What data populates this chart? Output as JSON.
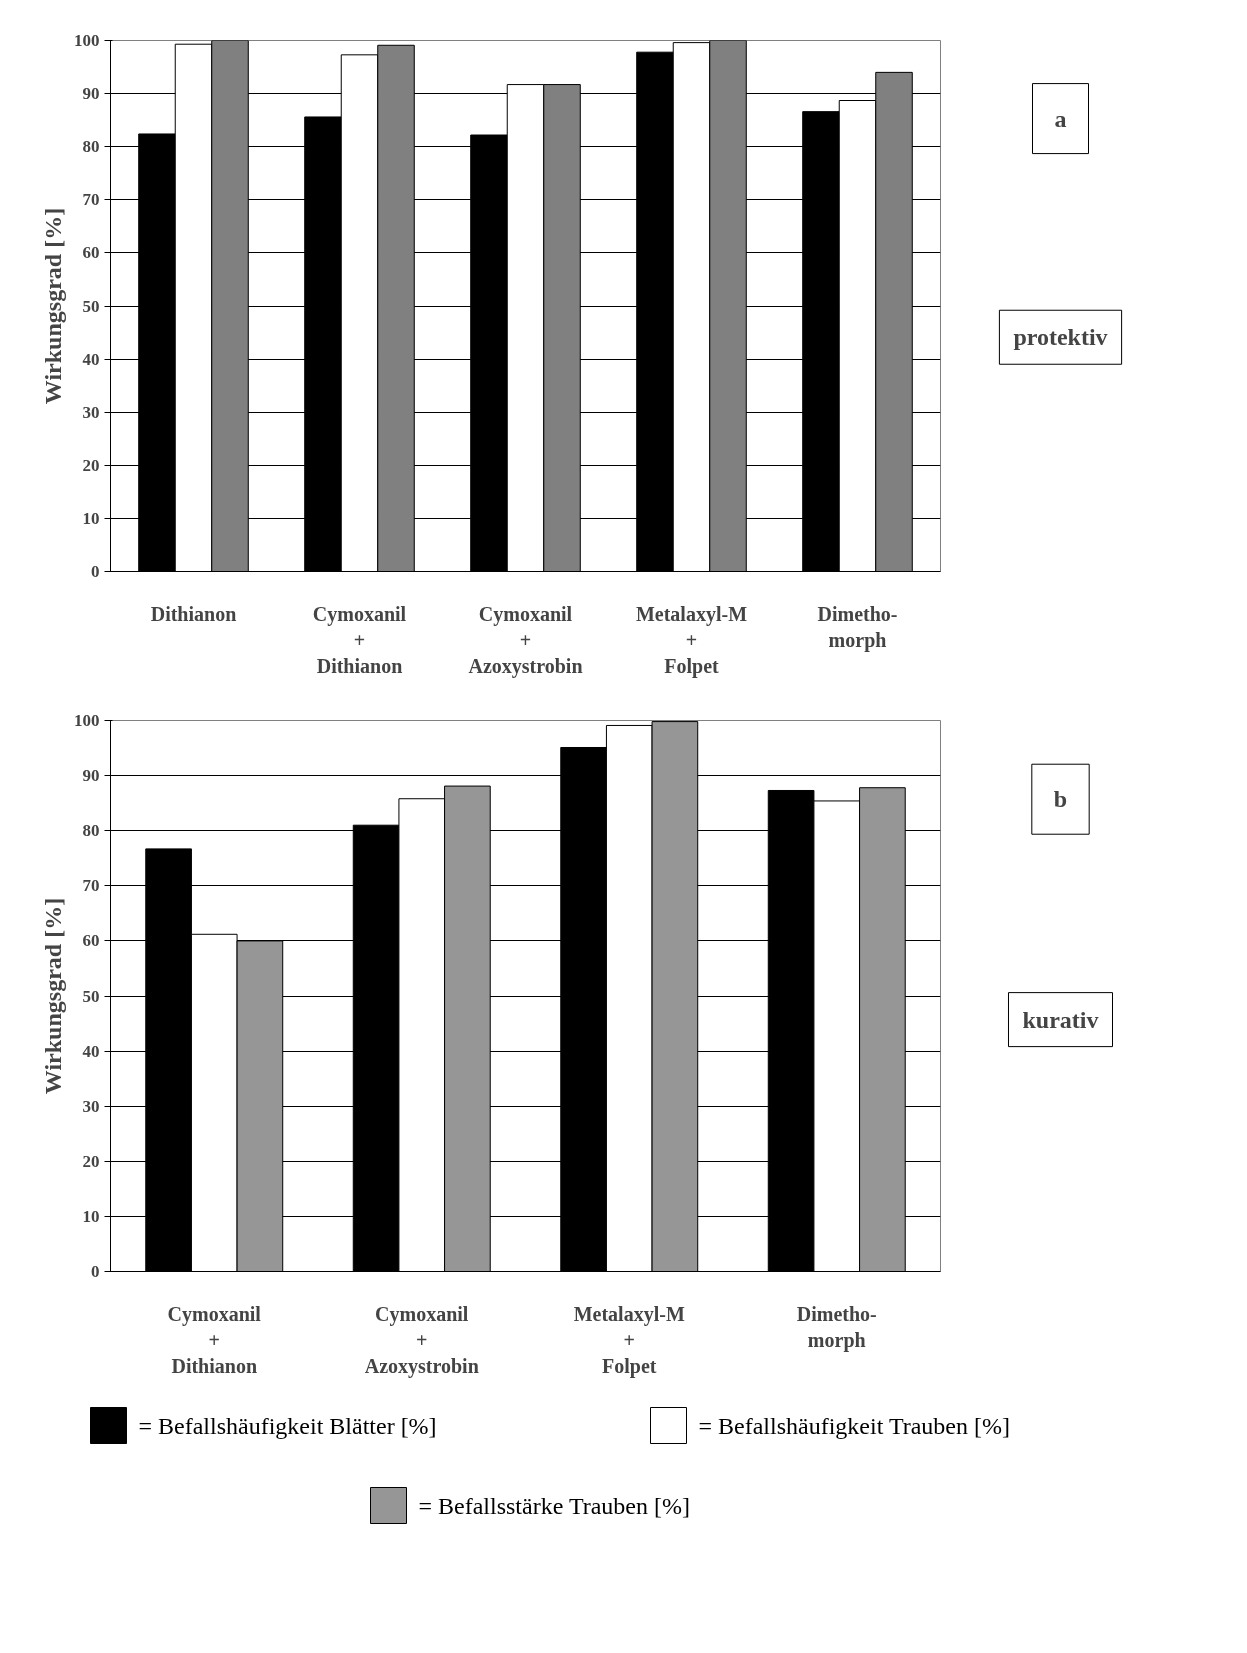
{
  "chart_data": [
    {
      "type": "bar",
      "ylabel": "Wirkungsgrad [%]",
      "categories": [
        "Dithianon",
        "Cymoxanil\n+\nDithianon",
        "Cymoxanil\n+\nAzoxystrobin",
        "Metalaxyl-M\n+\nFolpet",
        "Dimetho-\nmorph"
      ],
      "series": [
        {
          "color": "#000000",
          "values": [
            82.4,
            85.6,
            82.2,
            97.8,
            86.6
          ]
        },
        {
          "color": "#ffffff",
          "values": [
            99.3,
            97.3,
            91.7,
            99.6,
            88.7
          ]
        },
        {
          "color": "#808080",
          "values": [
            100,
            99.1,
            91.7,
            100,
            94.0
          ]
        }
      ],
      "ylim": [
        0,
        100
      ],
      "yticks": [
        0,
        10,
        20,
        30,
        40,
        50,
        60,
        70,
        80,
        90,
        100
      ],
      "grid": "y",
      "annotations": [
        "a",
        "protektiv"
      ]
    },
    {
      "type": "bar",
      "ylabel": "Wirkungsgrad [%]",
      "categories": [
        "Cymoxanil\n+\nDithianon",
        "Cymoxanil\n+\nAzoxystrobin",
        "Metalaxyl-M\n+\nFolpet",
        "Dimetho-\nmorph"
      ],
      "series": [
        {
          "name": "= Befallshäufigkeit Blätter [%]",
          "color": "#000000",
          "values": [
            76.7,
            81.0,
            95.1,
            87.3
          ]
        },
        {
          "name": "= Befallshäufigkeit Trauben [%]",
          "color": "#ffffff",
          "values": [
            61.2,
            85.8,
            99.1,
            85.4
          ]
        },
        {
          "name": "= Befallsstärke Trauben [%]",
          "color": "#969696",
          "values": [
            60,
            88.1,
            99.8,
            87.8
          ]
        }
      ],
      "ylim": [
        0,
        100
      ],
      "yticks": [
        0,
        10,
        20,
        30,
        40,
        50,
        60,
        70,
        80,
        90,
        100
      ],
      "grid": "y",
      "legend": "bottom",
      "annotations": [
        "b",
        "kurativ"
      ]
    }
  ]
}
